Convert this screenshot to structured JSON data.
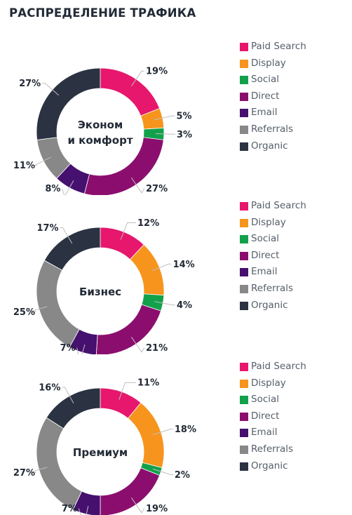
{
  "title": "РАСПРЕДЕЛЕНИЕ ТРАФИКА",
  "colors": {
    "paid_search": "#e6176d",
    "display": "#f7941d",
    "social": "#12a14b",
    "direct": "#8b0e6e",
    "email": "#45106e",
    "referrals": "#888888",
    "organic": "#2b3242",
    "leader": "#bfbfbf",
    "text": "#222a36"
  },
  "chart_data": [
    {
      "type": "pie",
      "center_label": [
        "Эконом",
        "и комфорт"
      ],
      "categories": [
        "Paid Search",
        "Display",
        "Social",
        "Direct",
        "Email",
        "Referrals",
        "Organic"
      ],
      "values": [
        19,
        5,
        3,
        27,
        8,
        11,
        27
      ],
      "labels": [
        "19%",
        "5%",
        "3%",
        "27%",
        "8%",
        "11%",
        "27%"
      ],
      "legend": {
        "position": "right"
      }
    },
    {
      "type": "pie",
      "center_label": [
        "Бизнес"
      ],
      "categories": [
        "Paid Search",
        "Display",
        "Social",
        "Direct",
        "Email",
        "Referrals",
        "Organic"
      ],
      "values": [
        12,
        14,
        4,
        21,
        7,
        25,
        17
      ],
      "labels": [
        "12%",
        "14%",
        "4%",
        "21%",
        "7%",
        "25%",
        "17%"
      ],
      "legend": {
        "position": "right"
      }
    },
    {
      "type": "pie",
      "center_label": [
        "Премиум"
      ],
      "categories": [
        "Paid Search",
        "Display",
        "Social",
        "Direct",
        "Email",
        "Referrals",
        "Organic"
      ],
      "values": [
        11,
        18,
        2,
        19,
        7,
        27,
        16
      ],
      "labels": [
        "11%",
        "18%",
        "2%",
        "19%",
        "7%",
        "27%",
        "16%"
      ],
      "legend": {
        "position": "right"
      }
    }
  ]
}
